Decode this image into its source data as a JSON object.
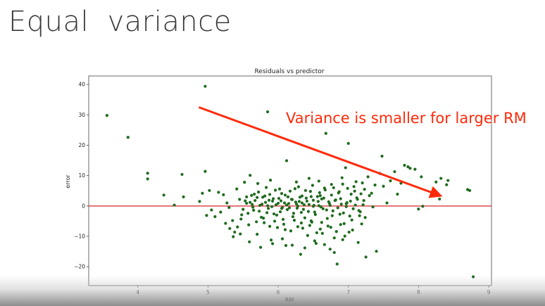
{
  "slide": {
    "title": "Equal  variance"
  },
  "annotation": {
    "text": "Variance is smaller for larger RM",
    "color": "#ff2a0a",
    "arrow_from": {
      "x": 4.87,
      "y": 32.5
    },
    "arrow_to": {
      "x": 8.3,
      "y": 3.5
    }
  },
  "chart_data": {
    "type": "scatter",
    "title": "Residuals vs predictor",
    "xlabel": "RM",
    "ylabel": "error",
    "xlim": [
      3.3,
      9.04
    ],
    "ylim": [
      -26.2,
      42.8
    ],
    "xticks": [
      4,
      5,
      6,
      7,
      8,
      9
    ],
    "yticks": [
      -20,
      -10,
      0,
      10,
      20,
      30,
      40
    ],
    "grid": false,
    "reference_line": {
      "y": 0,
      "color": "#d62728"
    },
    "point_color": "#1f6b1f",
    "points": [
      [
        3.56,
        29.8
      ],
      [
        3.86,
        22.6
      ],
      [
        4.14,
        10.8
      ],
      [
        4.14,
        8.9
      ],
      [
        4.37,
        3.6
      ],
      [
        4.52,
        0.3
      ],
      [
        4.63,
        10.4
      ],
      [
        4.65,
        3.0
      ],
      [
        4.88,
        1.5
      ],
      [
        4.92,
        4.2
      ],
      [
        4.96,
        39.4
      ],
      [
        4.96,
        11.4
      ],
      [
        4.98,
        -3.1
      ],
      [
        5.02,
        5.1
      ],
      [
        5.05,
        -1.3
      ],
      [
        5.1,
        -3.5
      ],
      [
        5.15,
        4.5
      ],
      [
        5.22,
        3.7
      ],
      [
        5.27,
        1.0
      ],
      [
        5.3,
        -0.5
      ],
      [
        5.35,
        -4.8
      ],
      [
        5.38,
        -8.6
      ],
      [
        5.41,
        5.6
      ],
      [
        5.45,
        2.2
      ],
      [
        5.48,
        -2.9
      ],
      [
        5.52,
        7.8
      ],
      [
        5.55,
        0.9
      ],
      [
        5.58,
        -6.2
      ],
      [
        5.6,
        10.1
      ],
      [
        5.62,
        3.5
      ],
      [
        5.65,
        -1.4
      ],
      [
        5.67,
        1.8
      ],
      [
        5.7,
        -9.3
      ],
      [
        5.72,
        4.6
      ],
      [
        5.74,
        0.2
      ],
      [
        5.76,
        -3.7
      ],
      [
        5.78,
        2.9
      ],
      [
        5.8,
        -5.5
      ],
      [
        5.82,
        1.2
      ],
      [
        5.85,
        31.0
      ],
      [
        5.86,
        -0.8
      ],
      [
        5.88,
        3.8
      ],
      [
        5.9,
        -11.2
      ],
      [
        5.92,
        1.6
      ],
      [
        5.94,
        -2.6
      ],
      [
        5.96,
        5.2
      ],
      [
        5.97,
        0.4
      ],
      [
        5.99,
        -7.1
      ],
      [
        6.01,
        2.5
      ],
      [
        6.03,
        -1.9
      ],
      [
        6.05,
        4.1
      ],
      [
        6.07,
        -4.4
      ],
      [
        6.09,
        1.0
      ],
      [
        6.11,
        -13.0
      ],
      [
        6.12,
        14.9
      ],
      [
        6.14,
        3.0
      ],
      [
        6.16,
        -0.6
      ],
      [
        6.18,
        -8.2
      ],
      [
        6.2,
        2.1
      ],
      [
        6.22,
        -2.4
      ],
      [
        6.24,
        5.7
      ],
      [
        6.26,
        0.7
      ],
      [
        6.28,
        -6.8
      ],
      [
        6.3,
        1.5
      ],
      [
        6.32,
        -15.9
      ],
      [
        6.34,
        3.3
      ],
      [
        6.36,
        -1.1
      ],
      [
        6.38,
        -3.9
      ],
      [
        6.4,
        2.6
      ],
      [
        6.42,
        -9.7
      ],
      [
        6.44,
        0.5
      ],
      [
        6.46,
        4.8
      ],
      [
        6.48,
        -5.3
      ],
      [
        6.5,
        1.9
      ],
      [
        6.52,
        -2.0
      ],
      [
        6.54,
        -12.3
      ],
      [
        6.56,
        3.1
      ],
      [
        6.58,
        0.1
      ],
      [
        6.6,
        -7.6
      ],
      [
        6.62,
        2.3
      ],
      [
        6.64,
        -0.9
      ],
      [
        6.66,
        5.9
      ],
      [
        6.68,
        23.9
      ],
      [
        6.7,
        -4.1
      ],
      [
        6.72,
        1.4
      ],
      [
        6.74,
        -14.2
      ],
      [
        6.76,
        3.6
      ],
      [
        6.78,
        -1.6
      ],
      [
        6.8,
        -10.5
      ],
      [
        6.82,
        2.0
      ],
      [
        6.84,
        -19.1
      ],
      [
        6.86,
        4.3
      ],
      [
        6.88,
        -2.7
      ],
      [
        6.9,
        0.6
      ],
      [
        6.92,
        7.2
      ],
      [
        6.94,
        -5.8
      ],
      [
        6.96,
        12.6
      ],
      [
        6.98,
        1.1
      ],
      [
        7.0,
        20.6
      ],
      [
        7.02,
        -3.3
      ],
      [
        7.04,
        3.9
      ],
      [
        7.06,
        -7.9
      ],
      [
        7.08,
        6.4
      ],
      [
        7.1,
        0.3
      ],
      [
        7.12,
        2.7
      ],
      [
        7.15,
        -1.5
      ],
      [
        7.18,
        4.0
      ],
      [
        7.2,
        7.6
      ],
      [
        7.22,
        1.8
      ],
      [
        7.25,
        -16.8
      ],
      [
        7.3,
        3.4
      ],
      [
        7.35,
        -0.3
      ],
      [
        7.4,
        -14.9
      ],
      [
        7.45,
        10.7
      ],
      [
        7.48,
        16.4
      ],
      [
        7.5,
        6.5
      ],
      [
        7.55,
        1.0
      ],
      [
        7.6,
        8.3
      ],
      [
        7.66,
        11.3
      ],
      [
        7.7,
        3.9
      ],
      [
        7.75,
        7.5
      ],
      [
        7.8,
        13.4
      ],
      [
        7.85,
        12.9
      ],
      [
        7.88,
        12.4
      ],
      [
        7.95,
        12.1
      ],
      [
        8.0,
        -1.0
      ],
      [
        8.04,
        9.6
      ],
      [
        8.06,
        -0.1
      ],
      [
        8.25,
        7.9
      ],
      [
        8.3,
        2.3
      ],
      [
        8.32,
        9.1
      ],
      [
        8.4,
        7.0
      ],
      [
        8.42,
        8.4
      ],
      [
        8.7,
        5.4
      ],
      [
        8.73,
        5.1
      ],
      [
        8.78,
        -23.3
      ],
      [
        5.6,
        1.2
      ],
      [
        5.64,
        -0.4
      ],
      [
        5.7,
        2.8
      ],
      [
        5.73,
        -1.7
      ],
      [
        5.77,
        0.6
      ],
      [
        5.81,
        3.3
      ],
      [
        5.84,
        -2.2
      ],
      [
        5.87,
        1.9
      ],
      [
        5.91,
        -0.2
      ],
      [
        5.93,
        2.4
      ],
      [
        5.98,
        -3.0
      ],
      [
        6.0,
        0.9
      ],
      [
        6.04,
        1.7
      ],
      [
        6.06,
        -0.5
      ],
      [
        6.1,
        3.6
      ],
      [
        6.13,
        -1.2
      ],
      [
        6.15,
        0.8
      ],
      [
        6.19,
        2.2
      ],
      [
        6.21,
        -3.5
      ],
      [
        6.25,
        1.3
      ],
      [
        6.27,
        -0.7
      ],
      [
        6.31,
        2.9
      ],
      [
        6.33,
        -2.1
      ],
      [
        6.37,
        0.4
      ],
      [
        6.41,
        1.6
      ],
      [
        6.43,
        -1.8
      ],
      [
        6.47,
        3.1
      ],
      [
        6.51,
        0.2
      ],
      [
        6.53,
        -2.8
      ],
      [
        6.57,
        1.5
      ],
      [
        6.61,
        -0.3
      ],
      [
        6.65,
        2.6
      ],
      [
        6.69,
        -1.3
      ],
      [
        6.73,
        0.9
      ],
      [
        6.77,
        -3.2
      ],
      [
        6.81,
        1.8
      ],
      [
        6.85,
        -0.6
      ],
      [
        6.89,
        2.4
      ],
      [
        6.93,
        -2.3
      ],
      [
        6.97,
        0.7
      ],
      [
        7.03,
        1.6
      ],
      [
        7.07,
        -0.9
      ],
      [
        7.13,
        2.2
      ],
      [
        7.17,
        -1.9
      ],
      [
        5.5,
        -1.1
      ],
      [
        5.53,
        1.7
      ],
      [
        5.57,
        -2.4
      ],
      [
        5.66,
        3.9
      ],
      [
        5.79,
        -4.0
      ],
      [
        5.95,
        -5.0
      ],
      [
        6.08,
        -6.0
      ],
      [
        6.23,
        -4.7
      ],
      [
        6.35,
        -7.3
      ],
      [
        6.45,
        -6.4
      ],
      [
        6.55,
        -8.8
      ],
      [
        6.63,
        -9.0
      ],
      [
        6.71,
        -6.6
      ],
      [
        6.83,
        -8.4
      ],
      [
        6.95,
        -9.9
      ],
      [
        7.05,
        -4.6
      ],
      [
        7.19,
        -5.9
      ],
      [
        7.24,
        -3.8
      ],
      [
        5.42,
        -6.9
      ],
      [
        5.46,
        -9.2
      ],
      [
        5.31,
        -7.4
      ],
      [
        5.18,
        -2.0
      ],
      [
        5.83,
        6.1
      ],
      [
        6.02,
        5.6
      ],
      [
        6.17,
        4.9
      ],
      [
        6.29,
        6.3
      ],
      [
        6.39,
        5.1
      ],
      [
        6.49,
        6.8
      ],
      [
        6.59,
        4.4
      ],
      [
        6.67,
        5.3
      ],
      [
        6.79,
        6.0
      ],
      [
        6.87,
        4.7
      ],
      [
        6.99,
        5.8
      ],
      [
        7.09,
        4.9
      ],
      [
        7.23,
        5.5
      ],
      [
        7.33,
        4.2
      ],
      [
        5.71,
        7.4
      ],
      [
        5.89,
        8.5
      ],
      [
        6.26,
        7.9
      ],
      [
        6.44,
        9.1
      ],
      [
        6.58,
        8.2
      ],
      [
        6.76,
        7.1
      ],
      [
        6.91,
        9.3
      ],
      [
        7.11,
        8.0
      ],
      [
        7.28,
        9.6
      ],
      [
        7.38,
        6.9
      ],
      [
        5.59,
        -11.8
      ],
      [
        5.75,
        -13.6
      ],
      [
        5.92,
        -12.4
      ],
      [
        6.06,
        -10.8
      ],
      [
        6.2,
        -12.9
      ],
      [
        6.38,
        -13.8
      ],
      [
        6.52,
        -11.5
      ],
      [
        6.66,
        -12.7
      ],
      [
        6.8,
        -15.3
      ],
      [
        6.92,
        -11.1
      ],
      [
        7.14,
        -12.0
      ],
      [
        5.36,
        -10.1
      ],
      [
        5.25,
        -5.7
      ],
      [
        5.47,
        -4.3
      ],
      [
        5.69,
        -5.2
      ],
      [
        5.88,
        -6.7
      ],
      [
        6.1,
        -7.8
      ],
      [
        6.33,
        -5.6
      ],
      [
        6.47,
        -4.9
      ],
      [
        6.62,
        -5.4
      ],
      [
        6.75,
        -7.0
      ],
      [
        6.89,
        -6.1
      ],
      [
        7.01,
        -8.6
      ],
      [
        7.16,
        -3.2
      ],
      [
        5.63,
        0.5
      ],
      [
        5.85,
        0.1
      ],
      [
        6.12,
        0.3
      ],
      [
        6.28,
        0.0
      ],
      [
        6.5,
        -0.1
      ],
      [
        6.74,
        0.2
      ],
      [
        6.97,
        -0.2
      ],
      [
        7.21,
        0.4
      ],
      [
        5.55,
        3.0
      ],
      [
        6.05,
        -0.8
      ],
      [
        6.34,
        1.0
      ],
      [
        6.6,
        3.4
      ]
    ]
  }
}
